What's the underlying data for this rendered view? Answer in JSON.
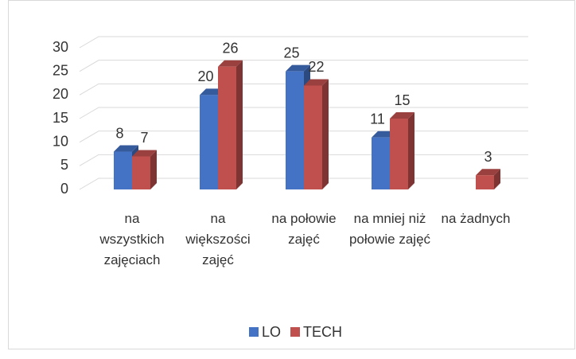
{
  "chart_data": {
    "type": "bar3d",
    "categories": [
      "na wszystkich zajęciach",
      "na większości zajęć",
      "na połowie zajęć",
      "na mniej niż połowie zajęć",
      "na żadnych"
    ],
    "series": [
      {
        "name": "LO",
        "color": "#4472c4",
        "values": [
          8,
          20,
          25,
          11,
          null
        ]
      },
      {
        "name": "TECH",
        "color": "#c0504d",
        "values": [
          7,
          26,
          22,
          15,
          3
        ]
      }
    ],
    "ylim": [
      0,
      30
    ],
    "yticks": [
      0,
      5,
      10,
      15,
      20,
      25,
      30
    ],
    "grid": true,
    "legend": "bottom"
  }
}
